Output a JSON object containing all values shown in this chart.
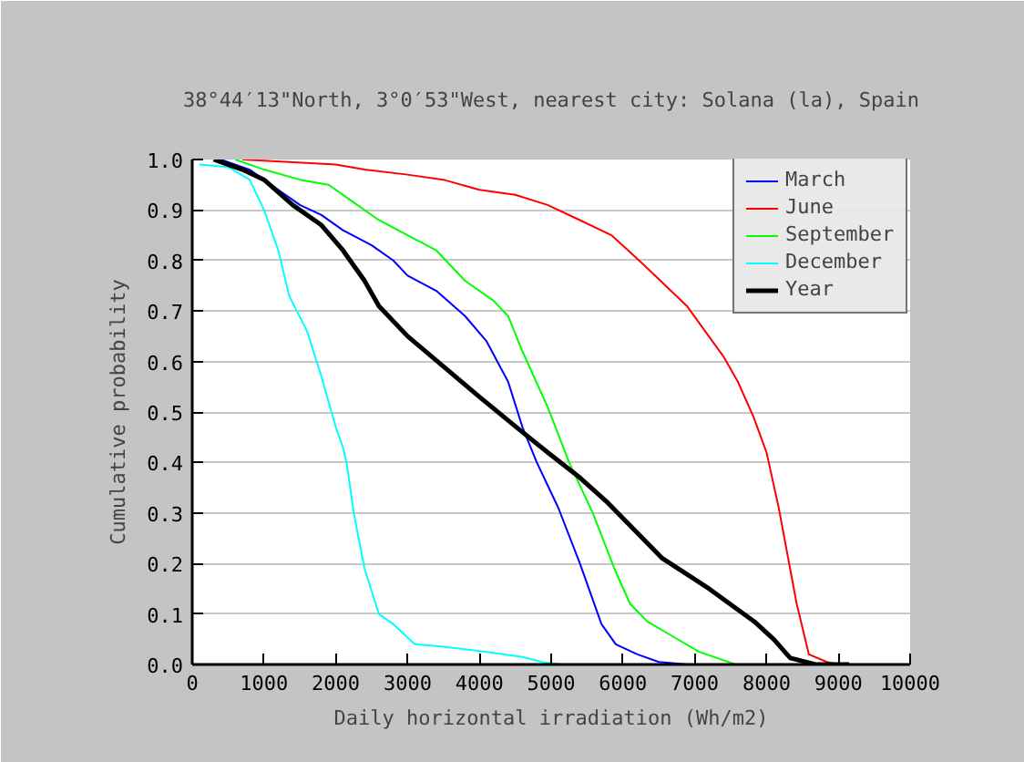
{
  "chart_data": {
    "type": "line",
    "title": "38°44′13\"North, 3°0′53\"West, nearest city: Solana (la), Spain",
    "xlabel": "Daily horizontal irradiation (Wh/m2)",
    "ylabel": "Cumulative probability",
    "xlim": [
      0,
      10000
    ],
    "xticks": [
      0,
      1000,
      2000,
      3000,
      4000,
      5000,
      6000,
      7000,
      8000,
      9000,
      10000
    ],
    "ylim": [
      0,
      1
    ],
    "yticks": [
      {
        "value": 0,
        "label": "0.0"
      },
      {
        "value": 0.1,
        "label": "0.1"
      },
      {
        "value": 0.2,
        "label": "0.2"
      },
      {
        "value": 0.3,
        "label": "0.3"
      },
      {
        "value": 0.4,
        "label": "0.4"
      },
      {
        "value": 0.5,
        "label": "0.5"
      },
      {
        "value": 0.6,
        "label": "0.6"
      },
      {
        "value": 0.7,
        "label": "0.7"
      },
      {
        "value": 0.8,
        "label": "0.8"
      },
      {
        "value": 0.9,
        "label": "0.9"
      },
      {
        "value": 1,
        "label": "1.0"
      }
    ],
    "grid": "y",
    "legend": "top right",
    "line_style": "solid",
    "marker": "none",
    "series": [
      {
        "name": "March",
        "color": "#0000ff",
        "x": [
          400,
          800,
          1200,
          1500,
          1800,
          2100,
          2500,
          2800,
          3000,
          3400,
          3800,
          4100,
          4400,
          4600,
          4800,
          5100,
          5400,
          5700,
          5900,
          6200,
          6500,
          6900
        ],
        "values": [
          1.0,
          0.98,
          0.94,
          0.91,
          0.89,
          0.86,
          0.83,
          0.8,
          0.77,
          0.74,
          0.69,
          0.64,
          0.56,
          0.47,
          0.4,
          0.31,
          0.2,
          0.08,
          0.04,
          0.02,
          0.005,
          0.0
        ]
      },
      {
        "name": "June",
        "color": "#ff0000",
        "x": [
          700,
          2000,
          2400,
          3000,
          3500,
          4000,
          4500,
          4950,
          5400,
          5840,
          6300,
          6890,
          7400,
          7600,
          7820,
          8000,
          8170,
          8420,
          8590,
          8840,
          9000
        ],
        "values": [
          1.0,
          0.99,
          0.98,
          0.97,
          0.96,
          0.94,
          0.93,
          0.91,
          0.88,
          0.85,
          0.79,
          0.71,
          0.61,
          0.56,
          0.49,
          0.42,
          0.31,
          0.12,
          0.02,
          0.005,
          0.0
        ]
      },
      {
        "name": "September",
        "color": "#00ff00",
        "x": [
          600,
          1000,
          1500,
          1900,
          2200,
          2600,
          3000,
          3400,
          3800,
          4200,
          4400,
          4600,
          4950,
          5250,
          5580,
          5880,
          6100,
          6340,
          6640,
          7060,
          7570
        ],
        "values": [
          1.0,
          0.98,
          0.96,
          0.95,
          0.92,
          0.88,
          0.85,
          0.82,
          0.76,
          0.72,
          0.69,
          0.62,
          0.51,
          0.4,
          0.3,
          0.19,
          0.12,
          0.085,
          0.06,
          0.025,
          0.0
        ]
      },
      {
        "name": "December",
        "color": "#00ffff",
        "x": [
          100,
          500,
          800,
          1000,
          1200,
          1350,
          1600,
          1800,
          2000,
          2100,
          2150,
          2250,
          2400,
          2600,
          2800,
          3100,
          3500,
          4100,
          4600,
          4900,
          5150
        ],
        "values": [
          0.99,
          0.985,
          0.96,
          0.9,
          0.82,
          0.73,
          0.66,
          0.57,
          0.47,
          0.43,
          0.4,
          0.3,
          0.19,
          0.1,
          0.08,
          0.04,
          0.035,
          0.025,
          0.015,
          0.004,
          0.0
        ]
      },
      {
        "name": "Year",
        "color": "#000000",
        "x": [
          300,
          700,
          1000,
          1400,
          1800,
          2100,
          2400,
          2600,
          3000,
          3500,
          4000,
          4600,
          4950,
          5400,
          5790,
          6550,
          7200,
          7830,
          8100,
          8330,
          8680,
          9150
        ],
        "values": [
          1.0,
          0.98,
          0.96,
          0.91,
          0.87,
          0.82,
          0.76,
          0.71,
          0.65,
          0.59,
          0.53,
          0.46,
          0.42,
          0.37,
          0.32,
          0.21,
          0.15,
          0.085,
          0.05,
          0.013,
          0.0,
          0.0
        ]
      }
    ]
  }
}
